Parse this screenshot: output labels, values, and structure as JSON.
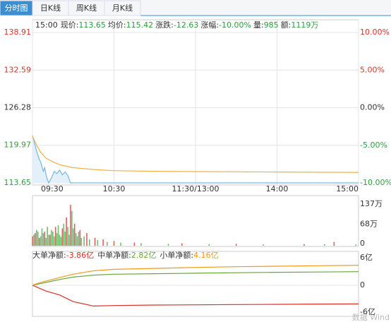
{
  "tabs": [
    "分时图",
    "日K线",
    "周K线",
    "月K线"
  ],
  "active_tab": 0,
  "watermark": "数据 Wind",
  "chart_data": [
    {
      "type": "line",
      "info": {
        "time": "15:00",
        "items": [
          {
            "label": "现价:",
            "value": "113.65"
          },
          {
            "label": "均价:",
            "value": "115.42"
          },
          {
            "label": "涨跌:",
            "value": "-12.63"
          },
          {
            "label": "涨幅:",
            "value": "-10.00%"
          },
          {
            "label": "量:",
            "value": "985"
          },
          {
            "label": "额:",
            "value": "1119万"
          }
        ]
      },
      "xlim": [
        0,
        240
      ],
      "xticks": [
        {
          "value": 0,
          "label": "09:30"
        },
        {
          "value": 60,
          "label": "10:30"
        },
        {
          "value": 120,
          "label": "11:30/13:00"
        },
        {
          "value": 180,
          "label": "14:00"
        },
        {
          "value": 240,
          "label": "15:00"
        }
      ],
      "ylim": [
        113.65,
        138.91
      ],
      "yticks": [
        113.65,
        119.97,
        126.28,
        132.59,
        138.91
      ],
      "y2lim": [
        -10,
        10
      ],
      "y2ticks": [
        {
          "value": -10,
          "label": "-10.00%"
        },
        {
          "value": -5,
          "label": "-5.00%"
        },
        {
          "value": 0,
          "label": "0.00%"
        },
        {
          "value": 5,
          "label": "5.00%"
        },
        {
          "value": 10,
          "label": "10.00%"
        }
      ],
      "grid": true,
      "up_color": "#e0302c",
      "down_color": "#2e9e3e",
      "flat_color": "#333333",
      "series": [
        {
          "color": "#7ab6e0",
          "fill": "#e3f0fa",
          "x": [
            0,
            1,
            2,
            3,
            4,
            5,
            6,
            7,
            8,
            9,
            10,
            11,
            12,
            14,
            16,
            18,
            20,
            22,
            24,
            26,
            28,
            30,
            60,
            120,
            180,
            240
          ],
          "values": [
            121.6,
            120.8,
            119.9,
            119.0,
            118.3,
            117.6,
            117.2,
            116.4,
            115.6,
            116.2,
            115.0,
            114.2,
            113.65,
            114.5,
            115.6,
            115.2,
            115.8,
            115.0,
            115.5,
            114.9,
            113.65,
            113.65,
            113.65,
            113.65,
            113.65,
            113.65
          ]
        },
        {
          "color": "#f2b04a",
          "x": [
            0,
            3,
            6,
            10,
            15,
            20,
            30,
            45,
            60,
            90,
            120,
            180,
            240
          ],
          "values": [
            121.5,
            120.0,
            118.8,
            117.8,
            117.2,
            116.7,
            116.2,
            115.9,
            115.7,
            115.6,
            115.55,
            115.48,
            115.42
          ]
        }
      ]
    },
    {
      "type": "bar",
      "xlim": [
        0,
        240
      ],
      "ylim": [
        0,
        137
      ],
      "yticks": [
        0,
        {
          "value": 68,
          "label": "68万"
        },
        {
          "value": 137,
          "label": "137万"
        }
      ],
      "series": [
        {
          "color": "#e0605c",
          "x": [
            0,
            2,
            5,
            9,
            13,
            17,
            22,
            25,
            28,
            31,
            35,
            40,
            46,
            52,
            60,
            75,
            110,
            150,
            200,
            222
          ],
          "values": [
            30,
            40,
            25,
            45,
            35,
            60,
            55,
            90,
            130,
            70,
            50,
            40,
            25,
            20,
            15,
            10,
            8,
            6,
            5,
            12
          ]
        },
        {
          "color": "#6fbf73",
          "x": [
            1,
            3,
            4,
            6,
            7,
            8,
            10,
            11,
            12,
            14,
            15,
            16,
            18,
            19,
            20,
            21,
            23,
            24,
            26,
            27,
            29,
            30,
            32,
            33,
            34,
            36,
            38,
            42,
            48,
            55,
            65,
            80,
            100,
            130,
            170,
            215,
            238
          ],
          "values": [
            35,
            50,
            45,
            30,
            55,
            40,
            25,
            60,
            35,
            50,
            45,
            30,
            40,
            65,
            35,
            28,
            70,
            45,
            60,
            35,
            110,
            55,
            40,
            30,
            45,
            25,
            30,
            20,
            18,
            12,
            10,
            8,
            6,
            5,
            4,
            5,
            4
          ]
        }
      ]
    },
    {
      "type": "line",
      "xlim": [
        0,
        240
      ],
      "ylim": [
        -6,
        6
      ],
      "yticks": [
        {
          "value": -6,
          "label": "-6亿"
        },
        0,
        {
          "value": 6,
          "label": "6亿"
        }
      ],
      "series": [
        {
          "name": "大单净额:",
          "value_label": "-3.86亿",
          "color": "#d9302a",
          "x": [
            0,
            5,
            10,
            20,
            30,
            45,
            60,
            90,
            120,
            150,
            180,
            210,
            240
          ],
          "values": [
            0,
            -0.6,
            -1.2,
            -2.0,
            -3.4,
            -4.3,
            -4.2,
            -4.1,
            -4.05,
            -4.0,
            -3.95,
            -3.9,
            -3.86
          ]
        },
        {
          "name": "中单净额:",
          "value_label": "2.82亿",
          "color": "#6aa637",
          "x": [
            0,
            5,
            10,
            20,
            30,
            45,
            60,
            90,
            120,
            150,
            180,
            210,
            240
          ],
          "values": [
            0,
            0.3,
            0.6,
            1.2,
            1.7,
            2.1,
            2.3,
            2.4,
            2.5,
            2.6,
            2.7,
            2.75,
            2.82
          ]
        },
        {
          "name": "小单净额:",
          "value_label": "4.16亿",
          "color": "#f29a1c",
          "x": [
            0,
            5,
            10,
            20,
            30,
            45,
            60,
            90,
            120,
            150,
            180,
            210,
            240
          ],
          "values": [
            0,
            0.5,
            0.9,
            1.6,
            2.3,
            3.0,
            3.3,
            3.5,
            3.7,
            3.85,
            3.95,
            4.05,
            4.16
          ]
        }
      ]
    }
  ]
}
